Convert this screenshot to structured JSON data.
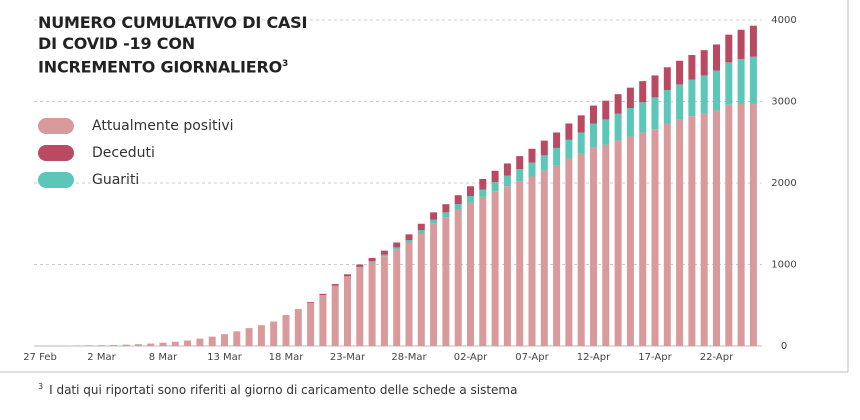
{
  "chart_data": {
    "type": "stacked-bar",
    "title_lines": [
      "NUMERO CUMULATIVO DI CASI",
      "DI COVID -19  CON",
      "INCREMENTO GIORNALIERO"
    ],
    "title_note": "3",
    "footnote_mark": "3",
    "footnote": "I dati qui riportati sono riferiti al giorno di caricamento delle schede a sistema",
    "categories": [
      "27 Feb",
      null,
      null,
      null,
      null,
      "2 Mar",
      null,
      null,
      null,
      null,
      "8 Mar",
      null,
      null,
      null,
      null,
      "13 Mar",
      null,
      null,
      null,
      null,
      "18 Mar",
      null,
      null,
      null,
      null,
      "23-Mar",
      null,
      null,
      null,
      null,
      "28-Mar",
      null,
      null,
      null,
      null,
      "02-Apr",
      null,
      null,
      null,
      null,
      "07-Apr",
      null,
      null,
      null,
      null,
      "12-Apr",
      null,
      null,
      null,
      null,
      "17-Apr",
      null,
      null,
      null,
      null,
      "22-Apr",
      null,
      null,
      null
    ],
    "series": [
      {
        "name": "Attualmente positivi",
        "color": "#d99a9c",
        "values": [
          2,
          3,
          4,
          6,
          8,
          10,
          13,
          17,
          22,
          30,
          40,
          52,
          68,
          90,
          115,
          145,
          180,
          220,
          255,
          300,
          380,
          445,
          530,
          625,
          740,
          855,
          960,
          1025,
          1100,
          1185,
          1270,
          1380,
          1500,
          1580,
          1670,
          1760,
          1830,
          1900,
          1960,
          2020,
          2080,
          2150,
          2220,
          2300,
          2360,
          2440,
          2470,
          2520,
          2570,
          2620,
          2660,
          2730,
          2780,
          2820,
          2850,
          2890,
          2960,
          2970,
          2970
        ]
      },
      {
        "name": "Guariti",
        "color": "#5cc6b8",
        "values": [
          0,
          0,
          0,
          0,
          0,
          0,
          0,
          0,
          0,
          0,
          0,
          0,
          0,
          0,
          0,
          0,
          0,
          0,
          0,
          0,
          0,
          0,
          0,
          0,
          0,
          0,
          10,
          15,
          20,
          25,
          30,
          40,
          50,
          60,
          70,
          80,
          90,
          110,
          130,
          150,
          170,
          190,
          210,
          230,
          260,
          290,
          310,
          330,
          350,
          370,
          390,
          410,
          430,
          450,
          470,
          490,
          520,
          550,
          580
        ]
      },
      {
        "name": "Deceduti",
        "color": "#b94a62",
        "values": [
          0,
          0,
          0,
          0,
          0,
          0,
          0,
          0,
          0,
          0,
          0,
          0,
          0,
          0,
          0,
          0,
          0,
          0,
          0,
          0,
          0,
          5,
          10,
          15,
          20,
          25,
          30,
          40,
          50,
          60,
          70,
          80,
          90,
          100,
          110,
          120,
          130,
          140,
          150,
          160,
          170,
          180,
          190,
          200,
          210,
          220,
          230,
          240,
          250,
          260,
          270,
          280,
          290,
          300,
          310,
          320,
          340,
          360,
          380
        ]
      }
    ],
    "legend_order": [
      0,
      2,
      1
    ],
    "ylim": [
      0,
      4000
    ],
    "yticks": [
      0,
      1000,
      2000,
      3000,
      4000
    ],
    "grid": true
  }
}
